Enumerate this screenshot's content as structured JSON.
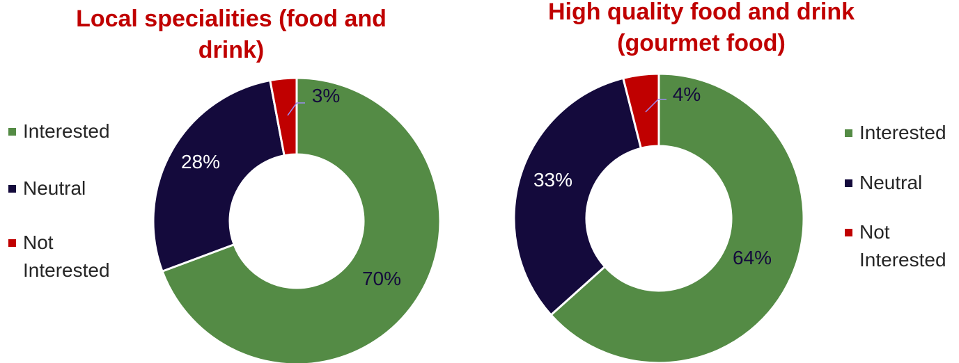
{
  "chart_data": [
    {
      "type": "pie",
      "title": "Local specialities (food and drink)",
      "categories": [
        "Interested",
        "Neutral",
        "Not Interested"
      ],
      "values": [
        70,
        28,
        3
      ],
      "value_labels": [
        "70%",
        "28%",
        "3%"
      ],
      "colors": [
        "#548b45",
        "#140a3c",
        "#c00000"
      ],
      "legend_position": "left"
    },
    {
      "type": "pie",
      "title": "High quality food and drink (gourmet food)",
      "categories": [
        "Interested",
        "Neutral",
        "Not Interested"
      ],
      "values": [
        64,
        33,
        4
      ],
      "value_labels": [
        "64%",
        "33%",
        "4%"
      ],
      "colors": [
        "#548b45",
        "#140a3c",
        "#c00000"
      ],
      "legend_position": "right"
    }
  ]
}
